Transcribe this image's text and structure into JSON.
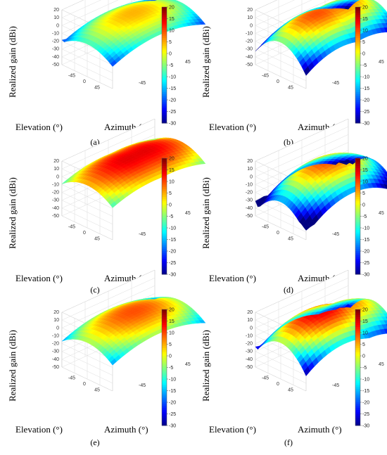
{
  "figure": {
    "panels": [
      {
        "label": "(a)",
        "ylabel": "Realized gain (dBi)",
        "xlabel_elev": "Elevation (°)",
        "xlabel_az": "Azimuth (°)"
      },
      {
        "label": "(b)",
        "ylabel": "Realized gain (dBi)",
        "xlabel_elev": "Elevation (°)",
        "xlabel_az": "Azimuth (°)"
      },
      {
        "label": "(c)",
        "ylabel": "Realized gain (dBi)",
        "xlabel_elev": "Elevation (°)",
        "xlabel_az": "Azimuth (°)"
      },
      {
        "label": "(d)",
        "ylabel": "Realized gain (dBi)",
        "xlabel_elev": "Elevation (°)",
        "xlabel_az": "Azimuth (°)"
      },
      {
        "label": "(e)",
        "ylabel": "Realized gain (dBi)",
        "xlabel_elev": "Elevation (°)",
        "xlabel_az": "Azimuth (°)"
      },
      {
        "label": "(f)",
        "ylabel": "Realized gain (dBi)",
        "xlabel_elev": "Elevation (°)",
        "xlabel_az": "Azimuth (°)"
      }
    ]
  },
  "chart_data": [
    {
      "type": "surface",
      "panel": "(a)",
      "zlabel": "Realized gain (dBi)",
      "xlabel": "Elevation (°)",
      "ylabel": "Azimuth (°)",
      "z_ticks": [
        20,
        10,
        0,
        -10,
        -20,
        -30,
        -40,
        -50
      ],
      "zlim": [
        -50,
        20
      ],
      "elevation_ticks": [
        -45,
        0,
        45
      ],
      "azimuth_ticks": [
        -45,
        0,
        45
      ],
      "colorbar": {
        "ticks": [
          20,
          15,
          10,
          5,
          0,
          -5,
          -10,
          -15,
          -20,
          -25,
          -30
        ],
        "range": [
          -30,
          20
        ]
      },
      "peaks": [
        {
          "elevation": 0,
          "azimuth": 0,
          "gain": 5
        }
      ]
    },
    {
      "type": "surface",
      "panel": "(b)",
      "zlabel": "Realized gain (dBi)",
      "xlabel": "Elevation (°)",
      "ylabel": "Azimuth (°)",
      "z_ticks": [
        20,
        10,
        0,
        -10,
        -20,
        -30,
        -40,
        -50
      ],
      "zlim": [
        -50,
        20
      ],
      "elevation_ticks": [
        -45,
        0,
        45
      ],
      "azimuth_ticks": [
        -45,
        0,
        45
      ],
      "colorbar": {
        "ticks": [
          20,
          15,
          10,
          5,
          0,
          -5,
          -10,
          -15,
          -20,
          -25,
          -30
        ],
        "range": [
          -30,
          20
        ]
      },
      "peaks": [
        {
          "elevation": 0,
          "azimuth": -20,
          "gain": 10
        },
        {
          "elevation": 0,
          "azimuth": 25,
          "gain": 8
        },
        {
          "elevation": -30,
          "azimuth": 0,
          "gain": 0
        }
      ]
    },
    {
      "type": "surface",
      "panel": "(c)",
      "zlabel": "Realized gain (dBi)",
      "xlabel": "Elevation (°)",
      "ylabel": "Azimuth (°)",
      "z_ticks": [
        20,
        10,
        0,
        -10,
        -20,
        -30,
        -40,
        -50
      ],
      "zlim": [
        -50,
        20
      ],
      "elevation_ticks": [
        -45,
        0,
        45
      ],
      "azimuth_ticks": [
        -45,
        0,
        45
      ],
      "colorbar": {
        "ticks": [
          20,
          15,
          10,
          5,
          0,
          -5,
          -10,
          -15,
          -20,
          -25,
          -30
        ],
        "range": [
          -30,
          20
        ]
      },
      "peaks": [
        {
          "elevation": 0,
          "azimuth": -10,
          "gain": 15
        },
        {
          "elevation": 0,
          "azimuth": 20,
          "gain": 15
        },
        {
          "elevation": -20,
          "azimuth": 0,
          "gain": 8
        }
      ]
    },
    {
      "type": "surface",
      "panel": "(d)",
      "zlabel": "Realized gain (dBi)",
      "xlabel": "Elevation (°)",
      "ylabel": "Azimuth (°)",
      "z_ticks": [
        20,
        10,
        0,
        -10,
        -20,
        -30,
        -40,
        -50
      ],
      "zlim": [
        -50,
        20
      ],
      "elevation_ticks": [
        -45,
        0,
        45
      ],
      "azimuth_ticks": [
        -45,
        0,
        45
      ],
      "colorbar": {
        "ticks": [
          20,
          15,
          10,
          5,
          0,
          -5,
          -10,
          -15,
          -20,
          -25,
          -30
        ],
        "range": [
          -30,
          20
        ]
      },
      "peaks": [
        {
          "elevation": 0,
          "azimuth": 0,
          "gain": 10
        }
      ]
    },
    {
      "type": "surface",
      "panel": "(e)",
      "zlabel": "Realized gain (dBi)",
      "xlabel": "Elevation (°)",
      "ylabel": "Azimuth (°)",
      "z_ticks": [
        20,
        10,
        0,
        -10,
        -20,
        -30,
        -40,
        -50
      ],
      "zlim": [
        -50,
        20
      ],
      "elevation_ticks": [
        -45,
        0,
        45
      ],
      "azimuth_ticks": [
        -45,
        0,
        45
      ],
      "colorbar": {
        "ticks": [
          20,
          15,
          10,
          5,
          0,
          -5,
          -10,
          -15,
          -20,
          -25,
          -30
        ],
        "range": [
          -30,
          20
        ]
      },
      "peaks": [
        {
          "elevation": 0,
          "azimuth": 0,
          "gain": 10
        }
      ]
    },
    {
      "type": "surface",
      "panel": "(f)",
      "zlabel": "Realized gain (dBi)",
      "xlabel": "Elevation (°)",
      "ylabel": "Azimuth (°)",
      "z_ticks": [
        20,
        10,
        0,
        -10,
        -20,
        -30,
        -40,
        -50
      ],
      "zlim": [
        -50,
        20
      ],
      "elevation_ticks": [
        -45,
        0,
        45
      ],
      "azimuth_ticks": [
        -45,
        0,
        45
      ],
      "colorbar": {
        "ticks": [
          20,
          15,
          10,
          5,
          0,
          -5,
          -10,
          -15,
          -20,
          -25,
          -30
        ],
        "range": [
          -30,
          20
        ]
      },
      "peaks": [
        {
          "elevation": 0,
          "azimuth": -15,
          "gain": 15
        },
        {
          "elevation": 0,
          "azimuth": 30,
          "gain": 8
        }
      ]
    }
  ]
}
